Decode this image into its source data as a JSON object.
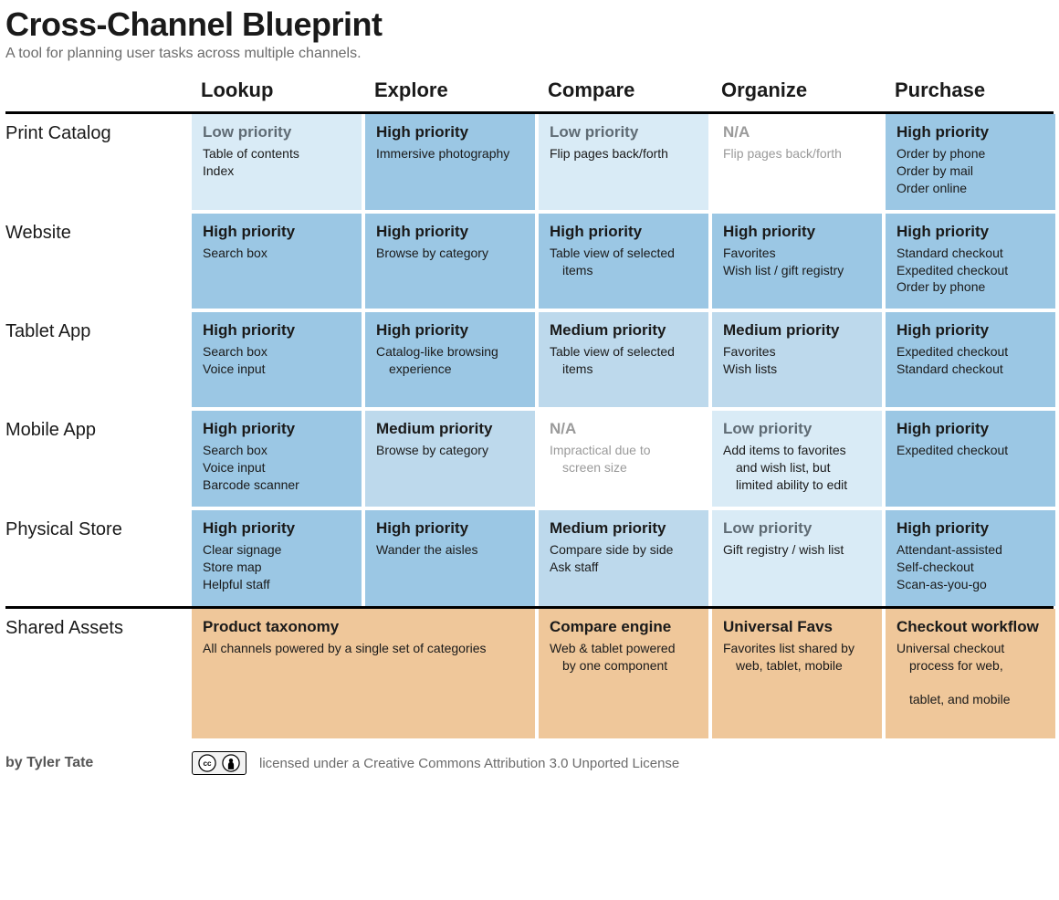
{
  "title": "Cross-Channel Blueprint",
  "subtitle": "A tool for planning user tasks across multiple channels.",
  "priority_colors": {
    "high": "#9bc7e4",
    "medium": "#bdd9ec",
    "low": "#d9ebf6",
    "na": "#ffffff",
    "asset": "#efc79a"
  },
  "priority_labels": {
    "high": "High priority",
    "medium": "Medium priority",
    "low": "Low priority",
    "na": "N/A"
  },
  "text_colors": {
    "heading": "#1a1a1a",
    "muted": "#6b6b6b",
    "na": "#9a9a9a"
  },
  "font_sizes_pt": {
    "title": 27,
    "subtitle": 12,
    "col_header": 16,
    "row_label": 15,
    "cell_priority": 13,
    "cell_body": 10.5,
    "footer": 12
  },
  "columns": [
    "Lookup",
    "Explore",
    "Compare",
    "Organize",
    "Purchase"
  ],
  "rows": [
    {
      "label": "Print Catalog",
      "cells": [
        {
          "priority": "low",
          "lines": [
            "Table of contents",
            "Index"
          ]
        },
        {
          "priority": "high",
          "lines": [
            "Immersive photography"
          ]
        },
        {
          "priority": "low",
          "lines": [
            "Flip pages back/forth"
          ]
        },
        {
          "priority": "na",
          "lines": [
            "Flip pages back/forth"
          ]
        },
        {
          "priority": "high",
          "lines": [
            "Order by phone",
            "Order by mail",
            "Order online"
          ]
        }
      ]
    },
    {
      "label": "Website",
      "cells": [
        {
          "priority": "high",
          "lines": [
            "Search box"
          ]
        },
        {
          "priority": "high",
          "lines": [
            "Browse by category"
          ]
        },
        {
          "priority": "high",
          "lines": [
            "Table view of selected",
            "  items"
          ]
        },
        {
          "priority": "high",
          "lines": [
            "Favorites",
            "Wish list / gift registry"
          ]
        },
        {
          "priority": "high",
          "lines": [
            "Standard checkout",
            "Expedited checkout",
            "Order by phone"
          ]
        }
      ]
    },
    {
      "label": "Tablet App",
      "cells": [
        {
          "priority": "high",
          "lines": [
            "Search box",
            "Voice input"
          ]
        },
        {
          "priority": "high",
          "lines": [
            "Catalog-like browsing",
            "  experience"
          ]
        },
        {
          "priority": "medium",
          "lines": [
            "Table view of selected",
            "  items"
          ]
        },
        {
          "priority": "medium",
          "lines": [
            "Favorites",
            "Wish lists"
          ]
        },
        {
          "priority": "high",
          "lines": [
            "Expedited checkout",
            "Standard checkout"
          ]
        }
      ]
    },
    {
      "label": "Mobile App",
      "cells": [
        {
          "priority": "high",
          "lines": [
            "Search box",
            "Voice input",
            "Barcode scanner"
          ]
        },
        {
          "priority": "medium",
          "lines": [
            "Browse by category"
          ]
        },
        {
          "priority": "na",
          "lines": [
            "Impractical due to",
            "  screen size"
          ]
        },
        {
          "priority": "low",
          "lines": [
            "Add items to favorites",
            "  and wish list, but",
            "  limited ability to edit"
          ]
        },
        {
          "priority": "high",
          "lines": [
            "Expedited checkout"
          ]
        }
      ]
    },
    {
      "label": "Physical Store",
      "cells": [
        {
          "priority": "high",
          "lines": [
            "Clear signage",
            "Store map",
            "Helpful staff"
          ]
        },
        {
          "priority": "high",
          "lines": [
            "Wander the aisles"
          ]
        },
        {
          "priority": "medium",
          "lines": [
            "Compare side by side",
            "Ask staff"
          ]
        },
        {
          "priority": "low",
          "lines": [
            "Gift registry / wish list"
          ]
        },
        {
          "priority": "high",
          "lines": [
            "Attendant-assisted",
            "Self-checkout",
            "Scan-as-you-go"
          ]
        }
      ]
    }
  ],
  "shared_assets": {
    "label": "Shared Assets",
    "cells": [
      {
        "span": 2,
        "title": "Product taxonomy",
        "lines": [
          "All channels powered by a single set of categories"
        ]
      },
      {
        "span": 1,
        "title": "Compare engine",
        "lines": [
          "Web & tablet powered",
          "  by one component"
        ]
      },
      {
        "span": 1,
        "title": "Universal Favs",
        "lines": [
          "Favorites list shared by",
          "  web, tablet, mobile"
        ]
      },
      {
        "span": 1,
        "title": "Checkout workflow",
        "lines": [
          "Universal checkout",
          "  process for web,",
          "  tablet, and mobile"
        ]
      }
    ]
  },
  "footer": {
    "byline": "by Tyler Tate",
    "license_text": "licensed under a Creative Commons Attribution 3.0 Unported License",
    "cc_label": "CC BY"
  }
}
